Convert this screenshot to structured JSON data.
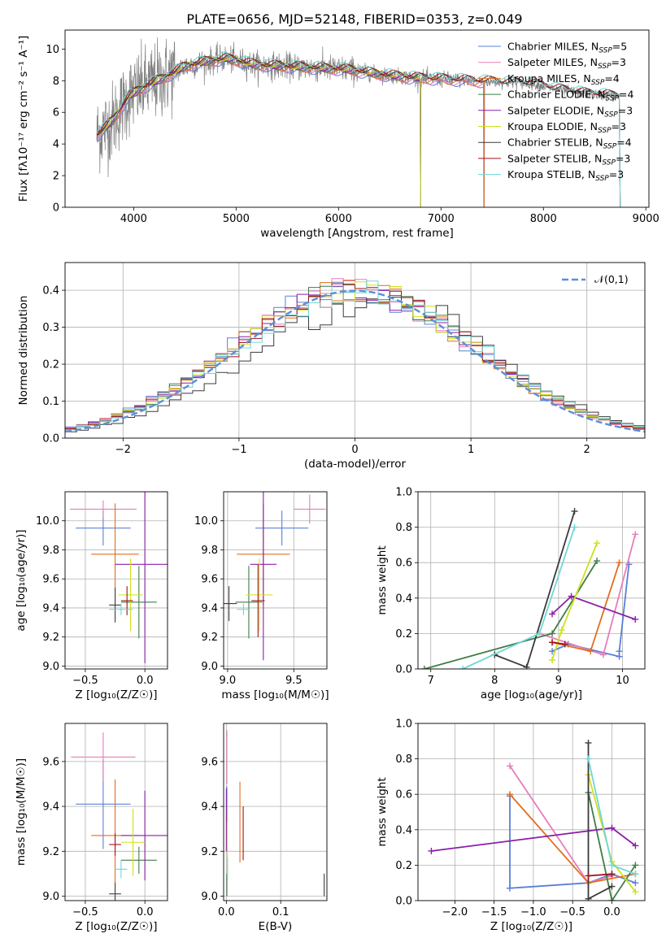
{
  "title": "PLATE=0656, MJD=52148, FIBERID=0353, z=0.049",
  "colors": {
    "s1": "#5b7fd8",
    "s2": "#e87cb9",
    "s3": "#e06f1f",
    "s4": "#3f7e46",
    "s5": "#8a1fa8",
    "s6": "#cfe01a",
    "s7": "#3b3b3b",
    "s8": "#a0121a",
    "s9": "#6fd6d6",
    "data": "#808080",
    "grid": "#b0b0b0",
    "normal": "#5b8fd8"
  },
  "chart_data": [
    {
      "id": "spectrum",
      "type": "line",
      "xlabel": "wavelength [Angstrom, rest frame]",
      "ylabel": "Flux [fλ10⁻¹⁷ erg cm⁻² s⁻¹ A⁻¹]",
      "xlim": [
        3330,
        9030
      ],
      "ylim": [
        0,
        11.2
      ],
      "xticks": [
        4000,
        5000,
        6000,
        7000,
        8000,
        9000
      ],
      "yticks": [
        0,
        2,
        4,
        6,
        8,
        10
      ],
      "grid": false,
      "legend_position": "top-right",
      "series": [
        {
          "name": "Chabrier MILES, N_SSP=5",
          "color_key": "s1",
          "end": 7420
        },
        {
          "name": "Salpeter MILES, N_SSP=3",
          "color_key": "s2",
          "end": 7420
        },
        {
          "name": "Kroupa MILES, N_SSP=4",
          "color_key": "s3",
          "end": 7420
        },
        {
          "name": "Chabrier ELODIE, N_SSP=4",
          "color_key": "s4",
          "end": 6800
        },
        {
          "name": "Salpeter ELODIE, N_SSP=3",
          "color_key": "s5",
          "end": 6800
        },
        {
          "name": "Kroupa ELODIE, N_SSP=3",
          "color_key": "s6",
          "end": 6800
        },
        {
          "name": "Chabrier STELIB, N_SSP=4",
          "color_key": "s7",
          "end": 8750
        },
        {
          "name": "Salpeter STELIB, N_SSP=3",
          "color_key": "s8",
          "end": 8750
        },
        {
          "name": "Kroupa STELIB, N_SSP=3",
          "color_key": "s9",
          "end": 8750
        }
      ],
      "continuum": [
        [
          3650,
          4.6
        ],
        [
          3800,
          5.5
        ],
        [
          3950,
          7.0
        ],
        [
          4100,
          7.6
        ],
        [
          4300,
          8.2
        ],
        [
          4500,
          8.9
        ],
        [
          4700,
          9.2
        ],
        [
          4900,
          9.4
        ],
        [
          5200,
          9.0
        ],
        [
          5500,
          8.9
        ],
        [
          5800,
          8.8
        ],
        [
          6100,
          8.7
        ],
        [
          6400,
          8.4
        ],
        [
          6700,
          8.2
        ],
        [
          7000,
          8.1
        ],
        [
          7300,
          8.0
        ],
        [
          7600,
          7.9
        ],
        [
          7900,
          7.8
        ],
        [
          8100,
          7.5
        ],
        [
          8400,
          7.2
        ],
        [
          8750,
          7.0
        ]
      ]
    },
    {
      "id": "residuals",
      "type": "histogram",
      "xlabel": "(data-model)/error",
      "ylabel": "Normed distribution",
      "xlim": [
        -2.5,
        2.5
      ],
      "ylim": [
        0,
        0.475
      ],
      "xticks": [
        -2,
        -1,
        0,
        1,
        2
      ],
      "yticks": [
        0.0,
        0.1,
        0.2,
        0.3,
        0.4
      ],
      "grid": true,
      "legend": "𝒩(0,1)",
      "legend_position": "top-right",
      "bin_width": 0.1
    },
    {
      "id": "age-vs-Z",
      "type": "errorbar",
      "xlabel": "Z [log₁₀(Z/Z☉)]",
      "ylabel": "age  [log₁₀(age/yr)]",
      "xlim": [
        -0.67,
        0.19
      ],
      "ylim": [
        8.98,
        10.2
      ],
      "xticks": [
        -0.5,
        0.0
      ],
      "ytick_labels": [
        "9.0",
        "9.2",
        "9.4",
        "9.6",
        "9.8",
        "10.0"
      ],
      "grid": true,
      "points": [
        {
          "c": "s1",
          "x": -0.35,
          "xe": 0.23,
          "y": 9.95,
          "ye": 0.12
        },
        {
          "c": "s2",
          "x": -0.35,
          "xe": 0.28,
          "y": 10.08,
          "ye": 0.06
        },
        {
          "c": "s3",
          "x": -0.25,
          "xe": 0.2,
          "y": 9.77,
          "ye": 0.35
        },
        {
          "c": "s4",
          "x": -0.05,
          "xe": 0.15,
          "y": 9.44,
          "ye": 0.25
        },
        {
          "c": "s5",
          "x": 0.0,
          "xe": 0.25,
          "y": 9.7,
          "ye": 0.68
        },
        {
          "c": "s6",
          "x": -0.12,
          "xe": 0.1,
          "y": 9.49,
          "ye": 0.25
        },
        {
          "c": "s7",
          "x": -0.25,
          "xe": 0.05,
          "y": 9.42,
          "ye": 0.12
        },
        {
          "c": "s8",
          "x": -0.15,
          "xe": 0.05,
          "y": 9.45,
          "ye": 0.1
        },
        {
          "c": "s9",
          "x": -0.2,
          "xe": 0.1,
          "y": 9.39,
          "ye": 0.04
        }
      ]
    },
    {
      "id": "age-vs-mass",
      "type": "errorbar",
      "xlabel": "mass [log₁₀(M/M☉)]",
      "ylabel": "",
      "xlim": [
        8.97,
        9.75
      ],
      "ylim": [
        8.98,
        10.2
      ],
      "xticks": [
        9.0,
        9.5
      ],
      "ytick_labels": [
        "9.0",
        "9.2",
        "9.4",
        "9.6",
        "9.8",
        "10.0"
      ],
      "grid": true,
      "points": [
        {
          "c": "s1",
          "x": 9.41,
          "xe": 0.2,
          "y": 9.95,
          "ye": 0.12
        },
        {
          "c": "s2",
          "x": 9.62,
          "xe": 0.12,
          "y": 10.08,
          "ye": 0.1
        },
        {
          "c": "s3",
          "x": 9.27,
          "xe": 0.2,
          "y": 9.77,
          "ye": 0.35
        },
        {
          "c": "s4",
          "x": 9.16,
          "xe": 0.1,
          "y": 9.44,
          "ye": 0.25
        },
        {
          "c": "s5",
          "x": 9.27,
          "xe": 0.1,
          "y": 9.7,
          "ye": 0.66
        },
        {
          "c": "s6",
          "x": 9.24,
          "xe": 0.1,
          "y": 9.49,
          "ye": 0.25
        },
        {
          "c": "s7",
          "x": 9.01,
          "xe": 0.06,
          "y": 9.43,
          "ye": 0.12
        },
        {
          "c": "s8",
          "x": 9.23,
          "xe": 0.05,
          "y": 9.45,
          "ye": 0.25
        },
        {
          "c": "s9",
          "x": 9.12,
          "xe": 0.05,
          "y": 9.39,
          "ye": 0.04
        }
      ]
    },
    {
      "id": "weight-vs-age",
      "type": "line",
      "xlabel": "age  [log₁₀(age/yr)]",
      "ylabel": "mass weight",
      "xlim": [
        6.8,
        10.35
      ],
      "ylim": [
        0,
        1.0
      ],
      "xticks": [
        7,
        8,
        9,
        10
      ],
      "yticks": [
        0.0,
        0.2,
        0.4,
        0.6,
        0.8,
        1.0
      ],
      "grid": true,
      "series": [
        {
          "c": "s1",
          "pts": [
            [
              8.9,
              0.1
            ],
            [
              9.15,
              0.14
            ],
            [
              9.95,
              0.07
            ],
            [
              9.95,
              0.1
            ],
            [
              10.1,
              0.59
            ]
          ]
        },
        {
          "c": "s2",
          "pts": [
            [
              8.7,
              0.2
            ],
            [
              9.7,
              0.08
            ],
            [
              10.2,
              0.76
            ]
          ]
        },
        {
          "c": "s3",
          "pts": [
            [
              8.9,
              0.15
            ],
            [
              9.5,
              0.1
            ],
            [
              9.95,
              0.6
            ]
          ]
        },
        {
          "c": "s4",
          "pts": [
            [
              6.9,
              0.0
            ],
            [
              8.9,
              0.2
            ],
            [
              9.6,
              0.61
            ]
          ]
        },
        {
          "c": "s5",
          "pts": [
            [
              8.9,
              0.31
            ],
            [
              9.2,
              0.41
            ],
            [
              10.2,
              0.28
            ]
          ]
        },
        {
          "c": "s6",
          "pts": [
            [
              8.9,
              0.05
            ],
            [
              9.05,
              0.22
            ],
            [
              9.6,
              0.71
            ]
          ]
        },
        {
          "c": "s7",
          "pts": [
            [
              8.0,
              0.08
            ],
            [
              8.5,
              0.01
            ],
            [
              9.25,
              0.89
            ]
          ]
        },
        {
          "c": "s8",
          "pts": [
            [
              8.9,
              0.15
            ],
            [
              9.1,
              0.14
            ]
          ]
        },
        {
          "c": "s9",
          "pts": [
            [
              7.5,
              0.0
            ],
            [
              8.7,
              0.2
            ],
            [
              9.25,
              0.8
            ]
          ]
        }
      ]
    },
    {
      "id": "mass-vs-Z",
      "type": "errorbar",
      "xlabel": "Z [log₁₀(Z/Z☉)]",
      "ylabel": "mass [log₁₀(M/M☉)]",
      "xlim": [
        -0.67,
        0.19
      ],
      "ylim": [
        8.98,
        9.77
      ],
      "xticks": [
        -0.5,
        0.0
      ],
      "ytick_labels": [
        "9.0",
        "9.2",
        "9.4",
        "9.6"
      ],
      "grid": true,
      "points": [
        {
          "c": "s1",
          "x": -0.35,
          "xe": 0.23,
          "y": 9.41,
          "ye": 0.2
        },
        {
          "c": "s2",
          "x": -0.35,
          "xe": 0.27,
          "y": 9.62,
          "ye": 0.11
        },
        {
          "c": "s3",
          "x": -0.25,
          "xe": 0.2,
          "y": 9.27,
          "ye": 0.25
        },
        {
          "c": "s4",
          "x": -0.05,
          "xe": 0.15,
          "y": 9.16,
          "ye": 0.06
        },
        {
          "c": "s5",
          "x": 0.0,
          "xe": 0.2,
          "y": 9.27,
          "ye": 0.2
        },
        {
          "c": "s6",
          "x": -0.1,
          "xe": 0.1,
          "y": 9.24,
          "ye": 0.15
        },
        {
          "c": "s7",
          "x": -0.25,
          "xe": 0.05,
          "y": 9.01,
          "ye": 0.05
        },
        {
          "c": "s8",
          "x": -0.25,
          "xe": 0.05,
          "y": 9.23,
          "ye": 0.05
        },
        {
          "c": "s9",
          "x": -0.2,
          "xe": 0.05,
          "y": 9.12,
          "ye": 0.04
        }
      ]
    },
    {
      "id": "mass-vs-ebv",
      "type": "errorbar",
      "xlabel": "E(B-V)",
      "ylabel": "",
      "xlim": [
        -0.005,
        0.185
      ],
      "ylim": [
        8.98,
        9.77
      ],
      "xticks": [
        0.0,
        0.1
      ],
      "ytick_labels": [
        "9.0",
        "9.2",
        "9.4",
        "9.6"
      ],
      "grid": true,
      "points": [
        {
          "c": "s1",
          "x": 0.001,
          "xe": 0,
          "y": 9.41,
          "ye": 0.08
        },
        {
          "c": "s2",
          "x": 0.001,
          "xe": 0,
          "y": 9.62,
          "ye": 0.12
        },
        {
          "c": "s3",
          "x": 0.025,
          "xe": 0,
          "y": 9.33,
          "ye": 0.18
        },
        {
          "c": "s4",
          "x": 0.001,
          "xe": 0,
          "y": 9.05,
          "ye": 0.05
        },
        {
          "c": "s5",
          "x": 0.0,
          "xe": 0,
          "y": 9.34,
          "ye": 0.14
        },
        {
          "c": "s6",
          "x": 0.002,
          "xe": 0,
          "y": 9.24,
          "ye": 0.15
        },
        {
          "c": "s7",
          "x": 0.18,
          "xe": 0,
          "y": 9.05,
          "ye": 0.05
        },
        {
          "c": "s8",
          "x": 0.031,
          "xe": 0,
          "y": 9.28,
          "ye": 0.12
        },
        {
          "c": "s9",
          "x": 0.002,
          "xe": 0,
          "y": 9.12,
          "ye": 0.05
        }
      ]
    },
    {
      "id": "weight-vs-Z",
      "type": "line",
      "xlabel": "Z [log₁₀(Z/Z☉)]",
      "ylabel": "mass weight",
      "xlim": [
        -2.47,
        0.42
      ],
      "ylim": [
        0,
        1.0
      ],
      "xticks": [
        -2.0,
        -1.5,
        -1.0,
        -0.5,
        0.0
      ],
      "ytick_labels": [
        "0.0",
        "0.2",
        "0.4",
        "0.6",
        "0.8",
        "1.0"
      ],
      "grid": true,
      "series": [
        {
          "c": "s1",
          "pts": [
            [
              -1.3,
              0.59
            ],
            [
              -1.3,
              0.07
            ],
            [
              -0.3,
              0.1
            ],
            [
              0.0,
              0.15
            ],
            [
              0.3,
              0.1
            ]
          ]
        },
        {
          "c": "s2",
          "pts": [
            [
              -1.3,
              0.76
            ],
            [
              -0.3,
              0.1
            ],
            [
              0.0,
              0.14
            ]
          ]
        },
        {
          "c": "s3",
          "pts": [
            [
              -1.3,
              0.6
            ],
            [
              -0.3,
              0.1
            ],
            [
              0.3,
              0.15
            ]
          ]
        },
        {
          "c": "s4",
          "pts": [
            [
              -0.3,
              0.61
            ],
            [
              0.0,
              0.0
            ],
            [
              0.3,
              0.2
            ]
          ]
        },
        {
          "c": "s5",
          "pts": [
            [
              -2.3,
              0.28
            ],
            [
              0.0,
              0.41
            ],
            [
              0.3,
              0.31
            ]
          ]
        },
        {
          "c": "s6",
          "pts": [
            [
              -0.3,
              0.71
            ],
            [
              0.0,
              0.22
            ],
            [
              0.3,
              0.05
            ]
          ]
        },
        {
          "c": "s7",
          "pts": [
            [
              -0.3,
              0.89
            ],
            [
              -0.3,
              0.01
            ],
            [
              0.0,
              0.08
            ]
          ]
        },
        {
          "c": "s8",
          "pts": [
            [
              -0.3,
              0.14
            ],
            [
              0.0,
              0.15
            ]
          ]
        },
        {
          "c": "s9",
          "pts": [
            [
              -0.3,
              0.8
            ],
            [
              0.0,
              0.2
            ],
            [
              0.3,
              0.15
            ]
          ]
        }
      ]
    }
  ]
}
